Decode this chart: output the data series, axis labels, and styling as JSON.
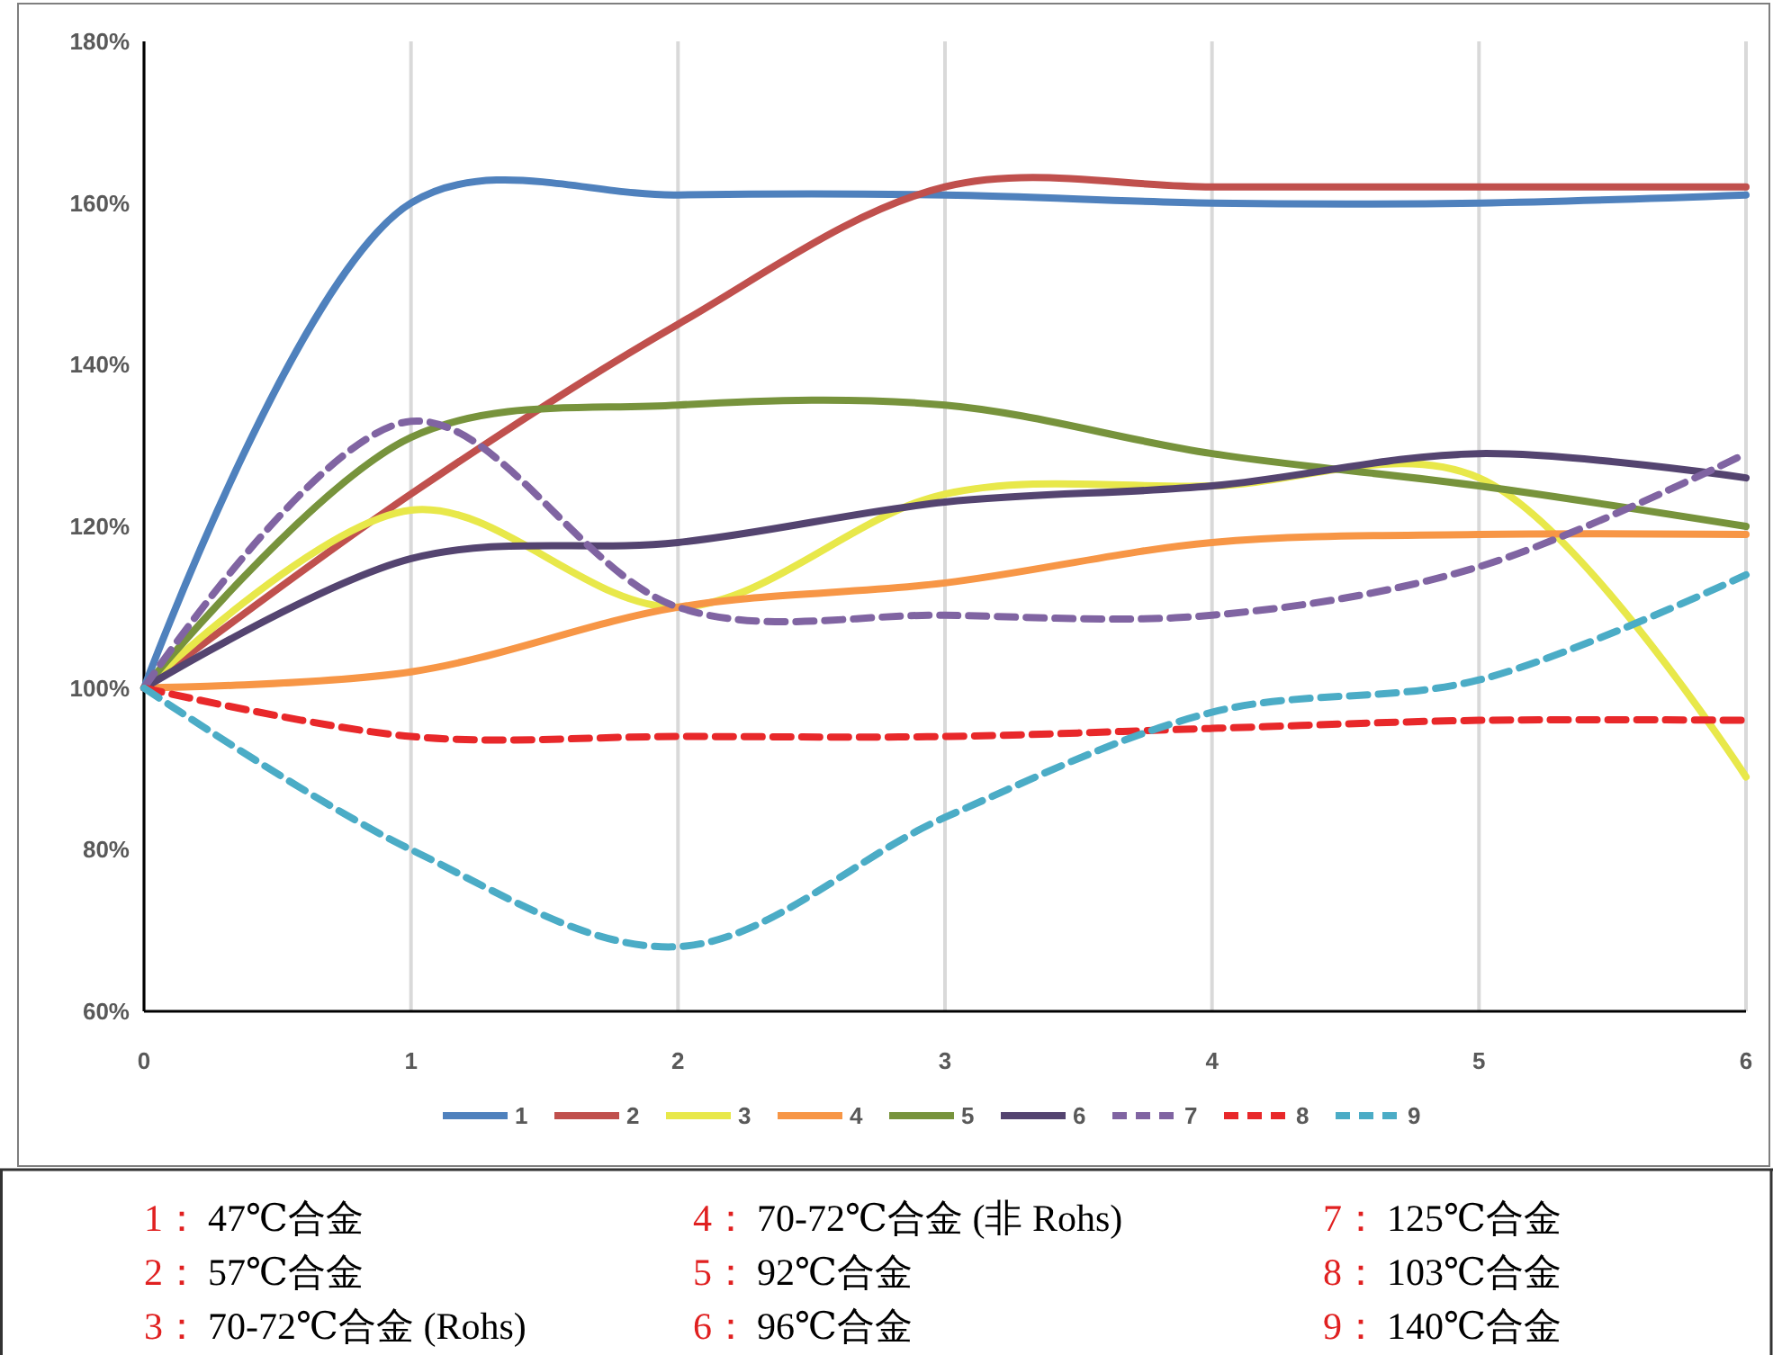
{
  "chart_data": {
    "type": "line",
    "x": [
      0,
      1,
      2,
      3,
      4,
      5,
      6
    ],
    "xlim": [
      0,
      6
    ],
    "xticks": [
      0,
      1,
      2,
      3,
      4,
      5,
      6
    ],
    "ylim": [
      60,
      180
    ],
    "yticks": [
      {
        "value": 60,
        "label": "60%"
      },
      {
        "value": 80,
        "label": "80%"
      },
      {
        "value": 100,
        "label": "100%"
      },
      {
        "value": 120,
        "label": "120%"
      },
      {
        "value": 140,
        "label": "140%"
      },
      {
        "value": 160,
        "label": "160%"
      },
      {
        "value": 180,
        "label": "180%"
      }
    ],
    "grid": "x",
    "legend": "bottom",
    "marker": "none",
    "series": [
      {
        "name": "1",
        "color": "#4f81bd",
        "values": [
          100,
          160,
          161,
          161,
          160,
          160,
          161
        ]
      },
      {
        "name": "2",
        "color": "#c0504d",
        "values": [
          100,
          124,
          145,
          162,
          162,
          162,
          162
        ]
      },
      {
        "name": "3",
        "color": "#e8e84a",
        "values": [
          100,
          122,
          110,
          124,
          125,
          126,
          89
        ]
      },
      {
        "name": "4",
        "color": "#f79646",
        "values": [
          100,
          102,
          110,
          113,
          118,
          119,
          119
        ]
      },
      {
        "name": "5",
        "color": "#77933c",
        "values": [
          100,
          131,
          135,
          135,
          129,
          125,
          120
        ]
      },
      {
        "name": "6",
        "color": "#544470",
        "values": [
          100,
          116,
          118,
          123,
          125,
          129,
          126
        ]
      },
      {
        "name": "7",
        "color": "#8064a2",
        "line_style": "dashed",
        "values": [
          100,
          133,
          110,
          109,
          109,
          115,
          129
        ]
      },
      {
        "name": "8",
        "color": "#e8282a",
        "line_style": "dashed",
        "values": [
          100,
          94,
          94,
          94,
          95,
          96,
          96
        ]
      },
      {
        "name": "9",
        "color": "#4bacc6",
        "line_style": "dashed",
        "values": [
          100,
          80,
          68,
          84,
          97,
          101,
          114
        ]
      }
    ],
    "annotations": [
      "1：47℃合金",
      "2：57℃合金",
      "3：70-72℃合金 (Rohs)",
      "4：70-72℃合金 (非 Rohs)",
      "5：92℃合金",
      "6：96℃合金",
      "7：125℃合金",
      "8：103℃合金",
      "9：140℃合金"
    ]
  }
}
